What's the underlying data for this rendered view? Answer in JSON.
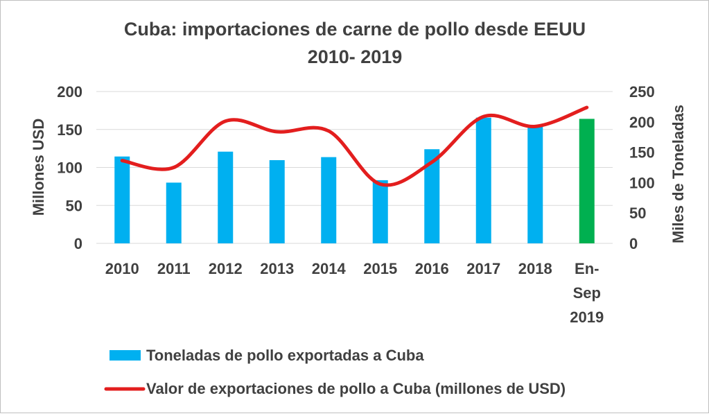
{
  "chart_data": {
    "type": "bar",
    "title": "Cuba: importaciones de carne de pollo desde EEUU",
    "title_line2": "2010- 2019",
    "categories": [
      "2010",
      "2011",
      "2012",
      "2013",
      "2014",
      "2015",
      "2016",
      "2017",
      "2018",
      "En-Sep 2019"
    ],
    "category_lines": [
      [
        "2010"
      ],
      [
        "2011"
      ],
      [
        "2012"
      ],
      [
        "2013"
      ],
      [
        "2014"
      ],
      [
        "2015"
      ],
      [
        "2016"
      ],
      [
        "2017"
      ],
      [
        "2018"
      ],
      [
        "En-",
        "Sep",
        "2019"
      ]
    ],
    "y_left": {
      "label": "Millones USD",
      "min": 0,
      "max": 200,
      "ticks": [
        0,
        50,
        100,
        150,
        200
      ]
    },
    "y_right": {
      "label": "Miles de Toneladas",
      "min": 0,
      "max": 250,
      "ticks": [
        0,
        50,
        100,
        150,
        200,
        250
      ]
    },
    "grid": true,
    "legend_placement": "bottom",
    "series": [
      {
        "name": "Toneladas de pollo exportadas a Cuba",
        "kind": "bar",
        "axis": "right",
        "color": "#00b0f0",
        "highlight_color": "#00b050",
        "highlight_index": 9,
        "values": [
          143,
          100,
          151,
          137,
          142,
          104,
          155,
          207,
          193,
          205
        ]
      },
      {
        "name": "Valor de exportaciones de pollo a Cuba (millones de USD)",
        "kind": "line",
        "axis": "left",
        "color": "#e31e1e",
        "smooth": true,
        "values": [
          109,
          100,
          161,
          147,
          148,
          78,
          107,
          167,
          154,
          179
        ]
      }
    ]
  }
}
